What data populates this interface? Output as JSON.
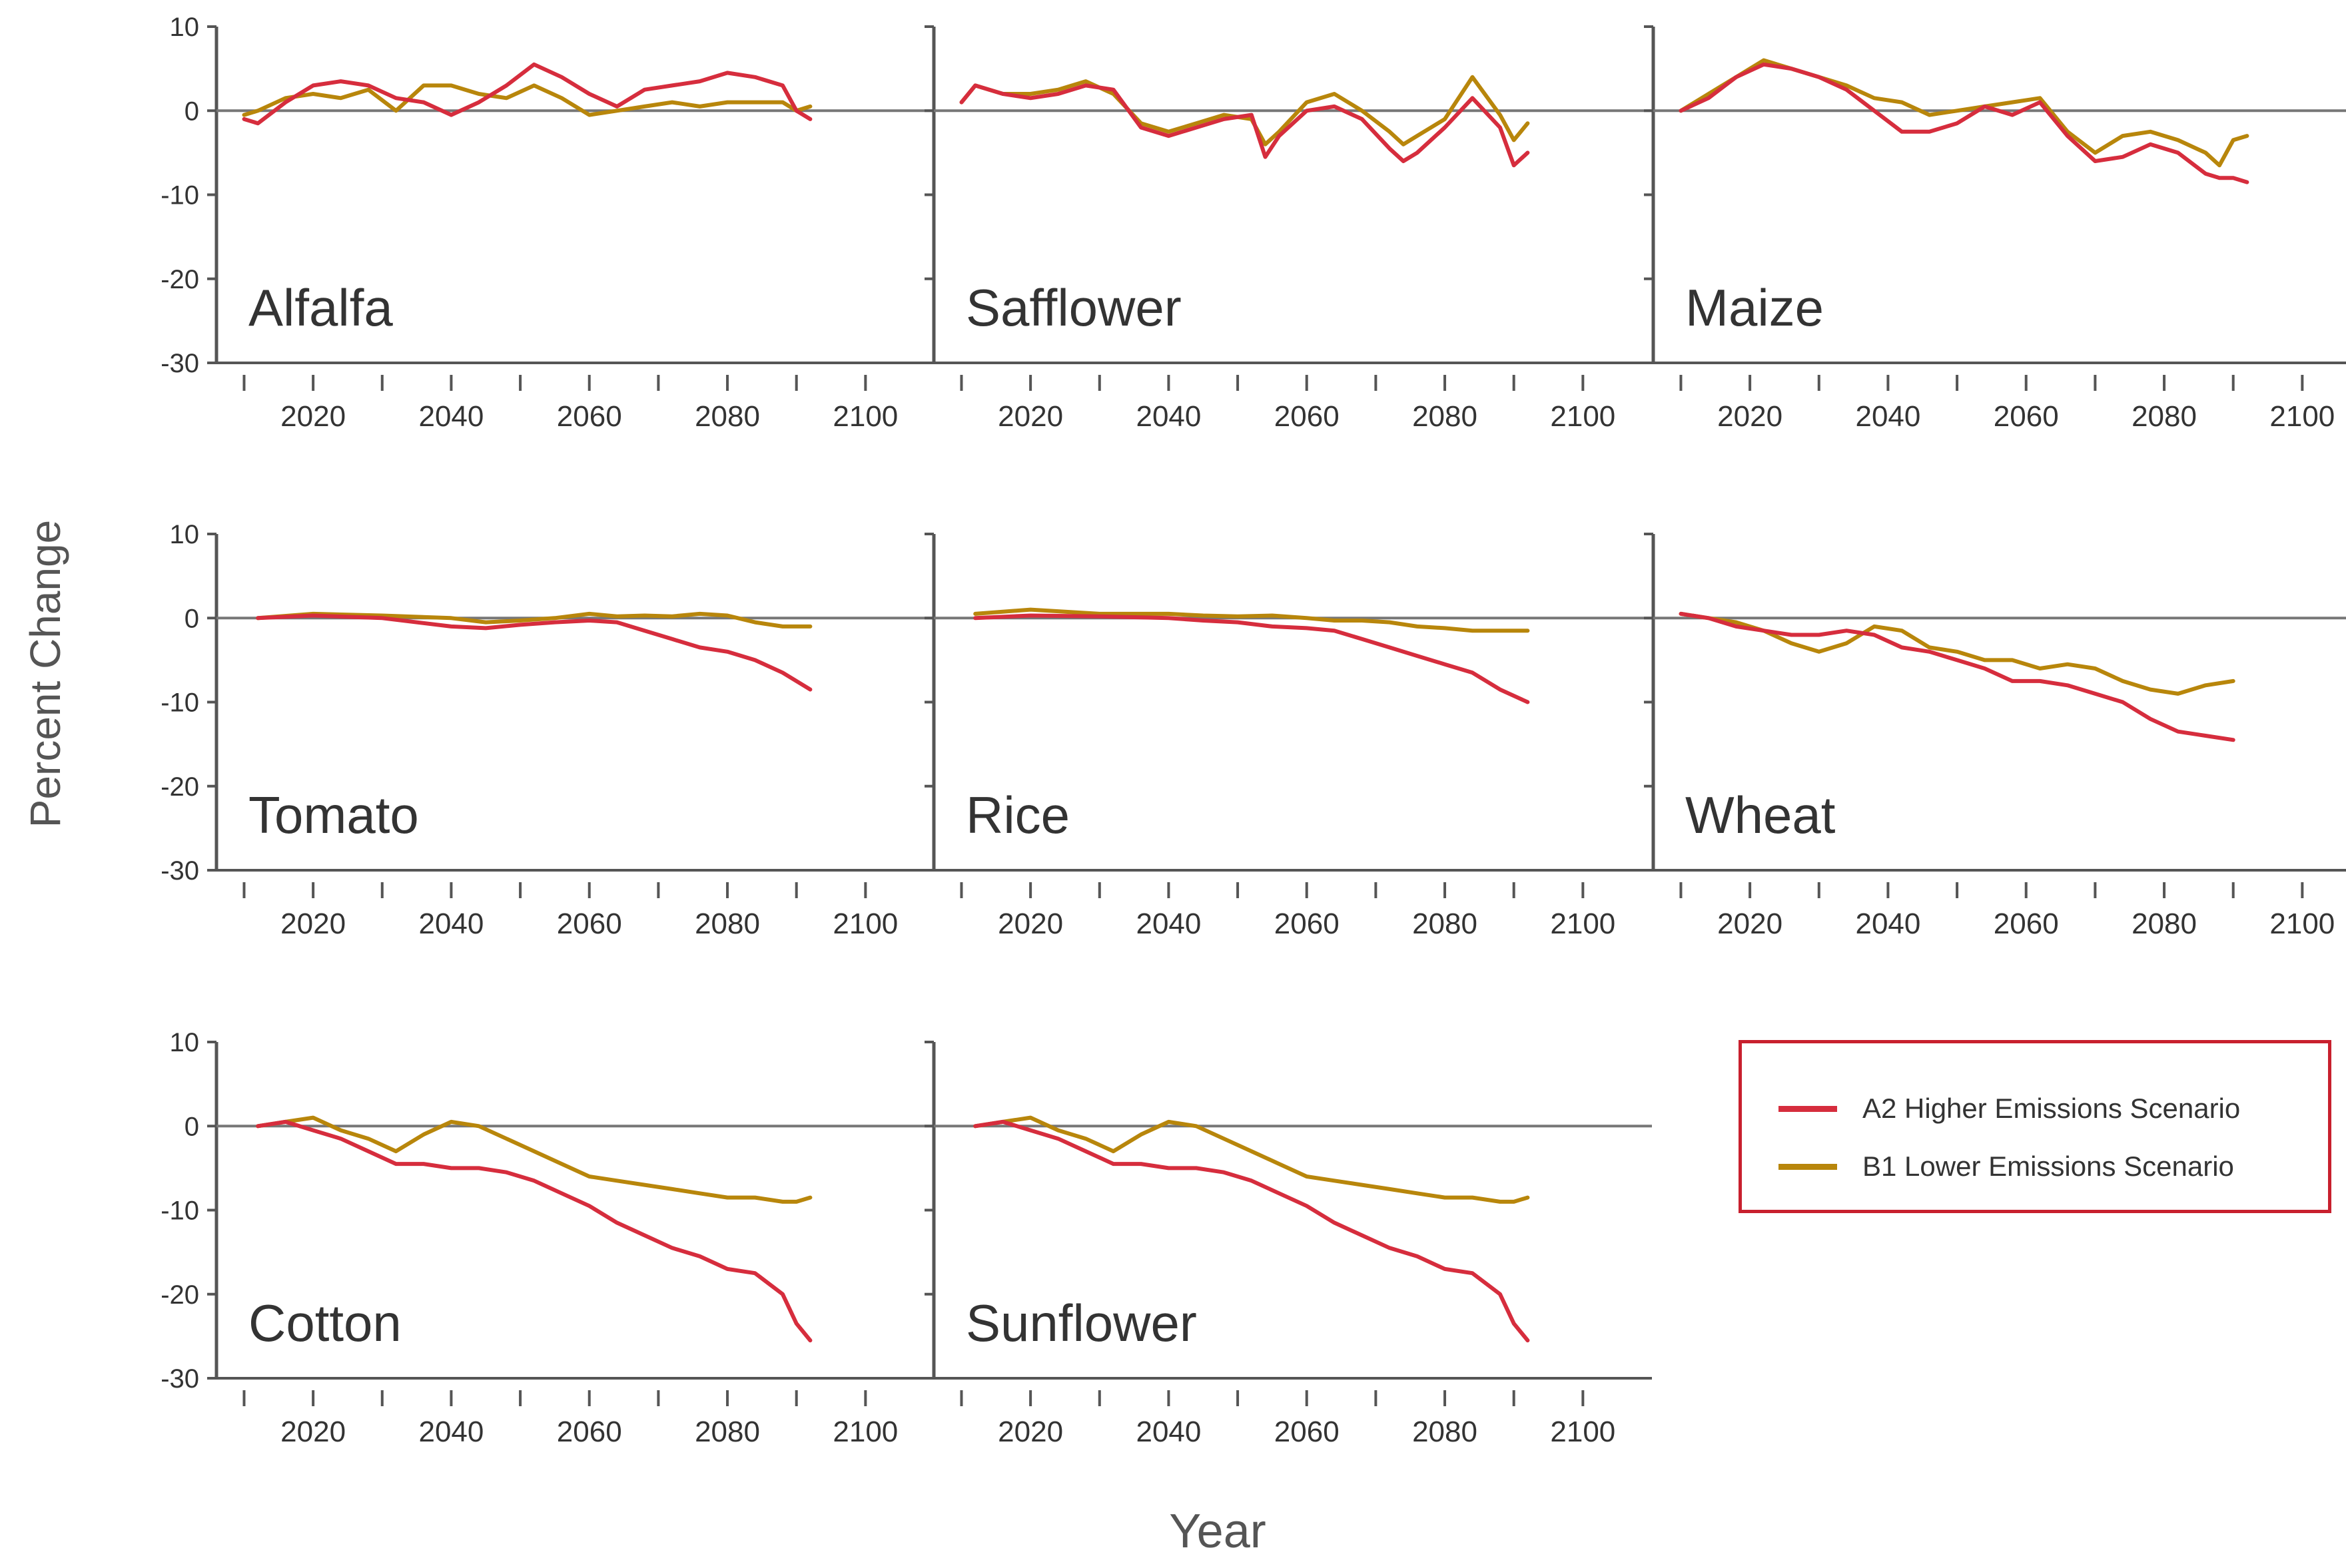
{
  "colors": {
    "a2": "#d62d3d",
    "b1": "#b8860b",
    "axis": "#555555",
    "zero": "#777777",
    "legend_border": "#c8202e"
  },
  "axis_labels": {
    "y": "Percent Change",
    "x": "Year"
  },
  "legend": {
    "a2_label": "A2 Higher Emissions Scenario",
    "b1_label": "B1 Lower Emissions Scenario"
  },
  "chart_data": {
    "type": "line",
    "title": "",
    "xlabel": "Year",
    "ylabel": "Percent Change",
    "xlim": [
      2006,
      2110
    ],
    "ylim": [
      -30,
      10
    ],
    "x_ticks": [
      2020,
      2040,
      2060,
      2080,
      2100
    ],
    "y_ticks": [
      10,
      0,
      -10,
      -20,
      -30
    ],
    "legend_position": "right",
    "panels": [
      {
        "name": "Alfalfa",
        "series": [
          {
            "name": "A2 Higher Emissions Scenario",
            "x": [
              2010,
              2012,
              2016,
              2020,
              2024,
              2028,
              2032,
              2036,
              2040,
              2044,
              2048,
              2052,
              2056,
              2060,
              2064,
              2068,
              2072,
              2076,
              2080,
              2084,
              2088,
              2090,
              2092
            ],
            "values": [
              -1,
              -1.5,
              1,
              3,
              3.5,
              3,
              1.5,
              1,
              -0.5,
              1,
              3,
              5.5,
              4,
              2,
              0.5,
              2.5,
              3,
              3.5,
              4.5,
              4,
              3,
              0,
              -1
            ]
          },
          {
            "name": "B1 Lower Emissions Scenario",
            "x": [
              2010,
              2012,
              2016,
              2020,
              2024,
              2028,
              2032,
              2036,
              2040,
              2044,
              2048,
              2052,
              2056,
              2060,
              2064,
              2068,
              2072,
              2076,
              2080,
              2084,
              2088,
              2090,
              2092
            ],
            "values": [
              -0.5,
              0,
              1.5,
              2,
              1.5,
              2.5,
              0,
              3,
              3,
              2,
              1.5,
              3,
              1.5,
              -0.5,
              0,
              0.5,
              1,
              0.5,
              1,
              1,
              1,
              0,
              0.5
            ]
          }
        ]
      },
      {
        "name": "Safflower",
        "series": [
          {
            "name": "A2 Higher Emissions Scenario",
            "x": [
              2010,
              2012,
              2016,
              2020,
              2024,
              2028,
              2032,
              2036,
              2040,
              2044,
              2048,
              2052,
              2054,
              2056,
              2060,
              2064,
              2068,
              2072,
              2074,
              2076,
              2080,
              2084,
              2088,
              2090,
              2092
            ],
            "values": [
              1,
              3,
              2,
              1.5,
              2,
              3,
              2.5,
              -2,
              -3,
              -2,
              -1,
              -0.5,
              -5.5,
              -3,
              0,
              0.5,
              -1,
              -4.5,
              -6,
              -5,
              -2,
              1.5,
              -2,
              -6.5,
              -5
            ]
          },
          {
            "name": "B1 Lower Emissions Scenario",
            "x": [
              2010,
              2012,
              2016,
              2020,
              2024,
              2028,
              2032,
              2036,
              2040,
              2044,
              2048,
              2052,
              2054,
              2056,
              2060,
              2064,
              2068,
              2072,
              2074,
              2076,
              2080,
              2084,
              2088,
              2090,
              2092
            ],
            "values": [
              1,
              3,
              2,
              2,
              2.5,
              3.5,
              2,
              -1.5,
              -2.5,
              -1.5,
              -0.5,
              -1,
              -4,
              -2.5,
              1,
              2,
              0,
              -2.5,
              -4,
              -3,
              -1,
              4,
              -0.5,
              -3.5,
              -1.5
            ]
          }
        ]
      },
      {
        "name": "Maize",
        "series": [
          {
            "name": "A2 Higher Emissions Scenario",
            "x": [
              2010,
              2014,
              2018,
              2022,
              2026,
              2030,
              2034,
              2038,
              2042,
              2046,
              2050,
              2054,
              2058,
              2062,
              2066,
              2070,
              2074,
              2078,
              2082,
              2086,
              2088,
              2090,
              2092
            ],
            "values": [
              0,
              1.5,
              4,
              5.5,
              5,
              4,
              2.5,
              0,
              -2.5,
              -2.5,
              -1.5,
              0.5,
              -0.5,
              1,
              -3,
              -6,
              -5.5,
              -4,
              -5,
              -7.5,
              -8,
              -8,
              -8.5
            ]
          },
          {
            "name": "B1 Lower Emissions Scenario",
            "x": [
              2010,
              2014,
              2018,
              2022,
              2026,
              2030,
              2034,
              2038,
              2042,
              2046,
              2050,
              2054,
              2058,
              2062,
              2066,
              2070,
              2074,
              2078,
              2082,
              2086,
              2088,
              2090,
              2092
            ],
            "values": [
              0,
              2,
              4,
              6,
              5,
              4,
              3,
              1.5,
              1,
              -0.5,
              0,
              0.5,
              1,
              1.5,
              -2.5,
              -5,
              -3,
              -2.5,
              -3.5,
              -5,
              -6.5,
              -3.5,
              -3
            ]
          }
        ]
      },
      {
        "name": "Tomato",
        "series": [
          {
            "name": "A2 Higher Emissions Scenario",
            "x": [
              2012,
              2020,
              2030,
              2040,
              2045,
              2050,
              2055,
              2060,
              2064,
              2068,
              2072,
              2076,
              2080,
              2084,
              2088,
              2092
            ],
            "values": [
              0,
              0.3,
              0,
              -1,
              -1.2,
              -0.8,
              -0.5,
              -0.3,
              -0.5,
              -1.5,
              -2.5,
              -3.5,
              -4,
              -5,
              -6.5,
              -8.5
            ]
          },
          {
            "name": "B1 Lower Emissions Scenario",
            "x": [
              2012,
              2020,
              2030,
              2040,
              2045,
              2050,
              2055,
              2060,
              2064,
              2068,
              2072,
              2076,
              2080,
              2084,
              2088,
              2092
            ],
            "values": [
              0,
              0.5,
              0.3,
              0,
              -0.5,
              -0.3,
              0,
              0.5,
              0.2,
              0.3,
              0.2,
              0.5,
              0.3,
              -0.5,
              -1,
              -1
            ]
          }
        ]
      },
      {
        "name": "Rice",
        "series": [
          {
            "name": "A2 Higher Emissions Scenario",
            "x": [
              2012,
              2020,
              2030,
              2040,
              2045,
              2050,
              2055,
              2060,
              2064,
              2068,
              2072,
              2076,
              2080,
              2084,
              2088,
              2092
            ],
            "values": [
              0,
              0.3,
              0.2,
              0,
              -0.3,
              -0.5,
              -1,
              -1.2,
              -1.5,
              -2.5,
              -3.5,
              -4.5,
              -5.5,
              -6.5,
              -8.5,
              -10
            ]
          },
          {
            "name": "B1 Lower Emissions Scenario",
            "x": [
              2012,
              2020,
              2030,
              2040,
              2045,
              2050,
              2055,
              2060,
              2064,
              2068,
              2072,
              2076,
              2080,
              2084,
              2088,
              2092
            ],
            "values": [
              0.5,
              1,
              0.5,
              0.5,
              0.3,
              0.2,
              0.3,
              0,
              -0.3,
              -0.3,
              -0.5,
              -1,
              -1.2,
              -1.5,
              -1.5,
              -1.5
            ]
          }
        ]
      },
      {
        "name": "Wheat",
        "series": [
          {
            "name": "A2 Higher Emissions Scenario",
            "x": [
              2010,
              2014,
              2018,
              2022,
              2026,
              2030,
              2034,
              2038,
              2042,
              2046,
              2050,
              2054,
              2058,
              2062,
              2066,
              2070,
              2074,
              2078,
              2082,
              2086,
              2090
            ],
            "values": [
              0.5,
              0,
              -1,
              -1.5,
              -2,
              -2,
              -1.5,
              -2,
              -3.5,
              -4,
              -5,
              -6,
              -7.5,
              -7.5,
              -8,
              -9,
              -10,
              -12,
              -13.5,
              -14,
              -14.5
            ]
          },
          {
            "name": "B1 Lower Emissions Scenario",
            "x": [
              2010,
              2014,
              2018,
              2022,
              2026,
              2030,
              2034,
              2038,
              2042,
              2046,
              2050,
              2054,
              2058,
              2062,
              2066,
              2070,
              2074,
              2078,
              2082,
              2086,
              2090
            ],
            "values": [
              0.5,
              0,
              -0.5,
              -1.5,
              -3,
              -4,
              -3,
              -1,
              -1.5,
              -3.5,
              -4,
              -5,
              -5,
              -6,
              -5.5,
              -6,
              -7.5,
              -8.5,
              -9,
              -8,
              -7.5
            ]
          }
        ]
      },
      {
        "name": "Cotton",
        "series": [
          {
            "name": "A2 Higher Emissions Scenario",
            "x": [
              2012,
              2016,
              2020,
              2024,
              2028,
              2032,
              2036,
              2040,
              2044,
              2048,
              2052,
              2056,
              2060,
              2064,
              2068,
              2072,
              2076,
              2080,
              2084,
              2088,
              2090,
              2092
            ],
            "values": [
              0,
              0.5,
              -0.5,
              -1.5,
              -3,
              -4.5,
              -4.5,
              -5,
              -5,
              -5.5,
              -6.5,
              -8,
              -9.5,
              -11.5,
              -13,
              -14.5,
              -15.5,
              -17,
              -17.5,
              -20,
              -23.5,
              -25.5
            ]
          },
          {
            "name": "B1 Lower Emissions Scenario",
            "x": [
              2012,
              2016,
              2020,
              2024,
              2028,
              2032,
              2036,
              2040,
              2044,
              2048,
              2052,
              2056,
              2060,
              2064,
              2068,
              2072,
              2076,
              2080,
              2084,
              2088,
              2090,
              2092
            ],
            "values": [
              0,
              0.5,
              1,
              -0.5,
              -1.5,
              -3,
              -1,
              0.5,
              0,
              -1.5,
              -3,
              -4.5,
              -6,
              -6.5,
              -7,
              -7.5,
              -8,
              -8.5,
              -8.5,
              -9,
              -9,
              -8.5
            ]
          }
        ]
      },
      {
        "name": "Sunflower",
        "series": [
          {
            "name": "A2 Higher Emissions Scenario",
            "x": [
              2012,
              2016,
              2020,
              2024,
              2028,
              2032,
              2036,
              2040,
              2044,
              2048,
              2052,
              2056,
              2060,
              2064,
              2068,
              2072,
              2076,
              2080,
              2084,
              2088,
              2090,
              2092
            ],
            "values": [
              0,
              0.5,
              -0.5,
              -1.5,
              -3,
              -4.5,
              -4.5,
              -5,
              -5,
              -5.5,
              -6.5,
              -8,
              -9.5,
              -11.5,
              -13,
              -14.5,
              -15.5,
              -17,
              -17.5,
              -20,
              -23.5,
              -25.5
            ]
          },
          {
            "name": "B1 Lower Emissions Scenario",
            "x": [
              2012,
              2016,
              2020,
              2024,
              2028,
              2032,
              2036,
              2040,
              2044,
              2048,
              2052,
              2056,
              2060,
              2064,
              2068,
              2072,
              2076,
              2080,
              2084,
              2088,
              2090,
              2092
            ],
            "values": [
              0,
              0.5,
              1,
              -0.5,
              -1.5,
              -3,
              -1,
              0.5,
              0,
              -1.5,
              -3,
              -4.5,
              -6,
              -6.5,
              -7,
              -7.5,
              -8,
              -8.5,
              -8.5,
              -9,
              -9,
              -8.5
            ]
          }
        ]
      }
    ]
  }
}
